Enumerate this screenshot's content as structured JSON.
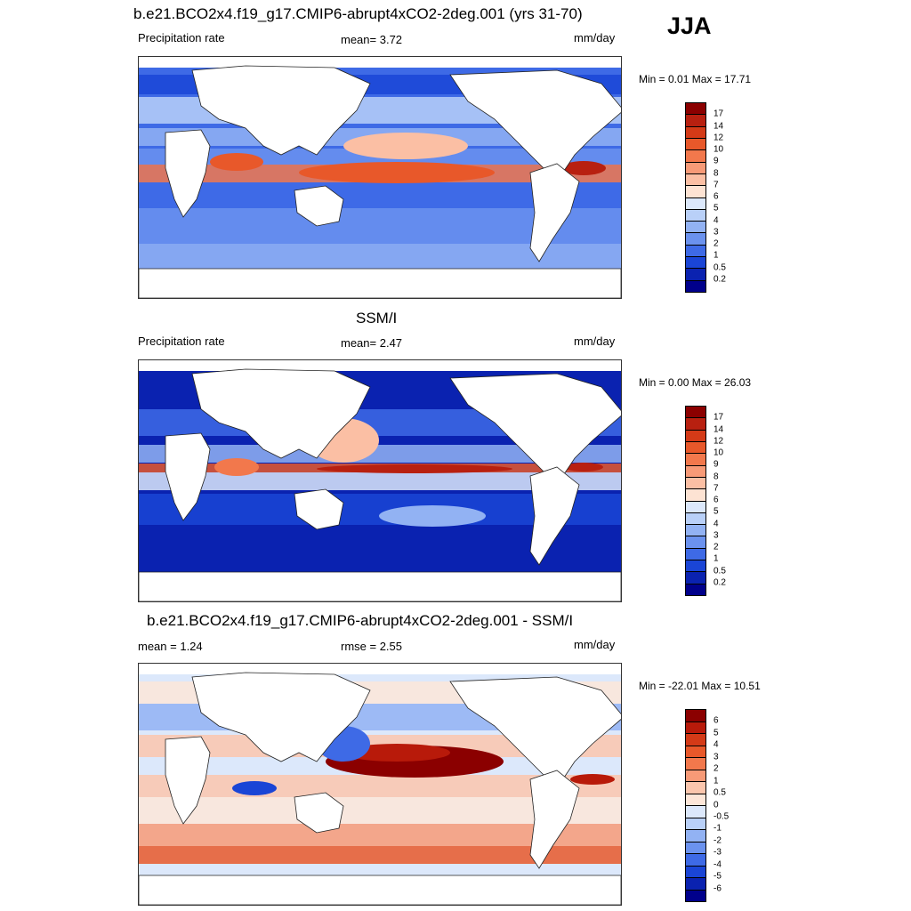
{
  "season": "JJA",
  "panels": [
    {
      "title": "b.e21.BCO2x4.f19_g17.CMIP6-abrupt4xCO2-2deg.001 (yrs 31-70)",
      "left_label": "Precipitation rate",
      "center_label": "mean=   3.72",
      "units": "mm/day",
      "minmax": "Min =   0.01 Max =  17.71",
      "scheme": "precip_model"
    },
    {
      "title": "SSM/I",
      "left_label": "Precipitation rate",
      "center_label": "mean=   2.47",
      "units": "mm/day",
      "minmax": "Min =   0.00 Max =  26.03",
      "scheme": "precip_obs"
    },
    {
      "title": "b.e21.BCO2x4.f19_g17.CMIP6-abrupt4xCO2-2deg.001 - SSM/I",
      "left_label": "mean =   1.24",
      "center_label": "rmse =   2.55",
      "units": "mm/day",
      "minmax": "Min = -22.01 Max =  10.51",
      "scheme": "diff"
    }
  ],
  "precip_colorbar": {
    "levels": [
      "17",
      "14",
      "12",
      "10",
      "9",
      "8",
      "7",
      "6",
      "5",
      "4",
      "3",
      "2",
      "1",
      "0.5",
      "0.2"
    ],
    "colors": [
      "#8b0000",
      "#b82010",
      "#d43a17",
      "#e8582a",
      "#f2784c",
      "#f79a77",
      "#fbbfa4",
      "#fde3d3",
      "#dce8fb",
      "#b9d0f8",
      "#92b2f3",
      "#6b92ee",
      "#3e6ae6",
      "#1a45d6",
      "#0a22b0",
      "#00008b"
    ]
  },
  "diff_colorbar": {
    "levels": [
      "6",
      "5",
      "4",
      "3",
      "2",
      "1",
      "0.5",
      "0",
      "-0.5",
      "-1",
      "-2",
      "-3",
      "-4",
      "-5",
      "-6"
    ],
    "colors": [
      "#8b0000",
      "#b81a0a",
      "#d43a17",
      "#e8582a",
      "#f2784c",
      "#f79a77",
      "#fbc6ad",
      "#fde6d8",
      "#dce8fb",
      "#b9d0f8",
      "#92b2f3",
      "#6b92ee",
      "#3e6ae6",
      "#1a45d6",
      "#0a22b0",
      "#00008b"
    ]
  }
}
